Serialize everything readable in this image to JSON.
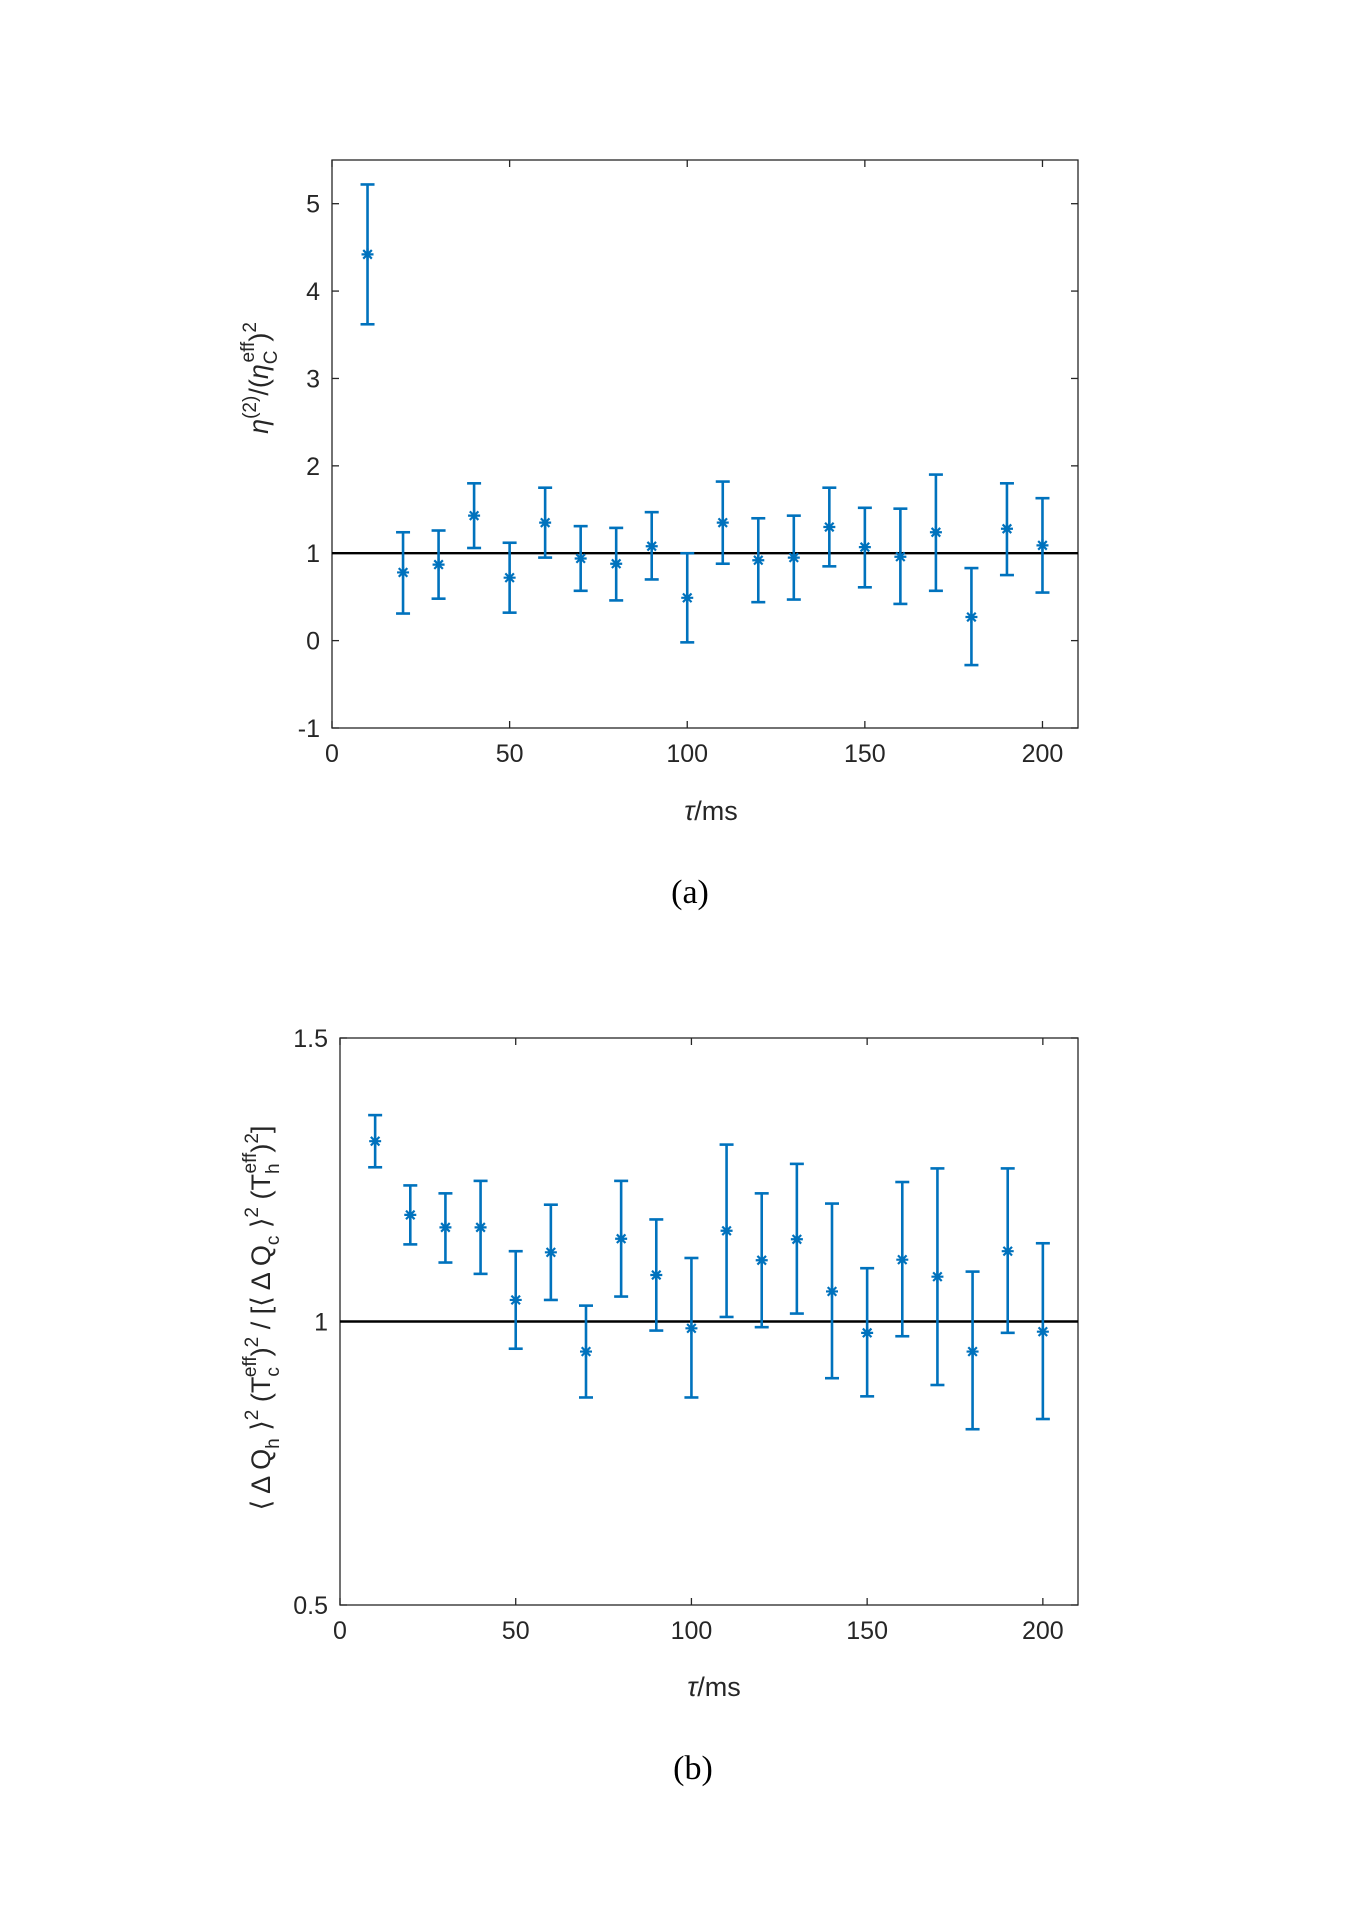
{
  "chart_data": [
    {
      "type": "scatter",
      "panel": "(a)",
      "caption": "(a)",
      "xlabel_symbol": "τ",
      "xlabel_unit": "/ms",
      "ylabel_parts": {
        "eta": "η",
        "sup2": "(2)",
        "mid": "/(",
        "eta2": "η",
        "sub": "C",
        "sup_eff": "eff",
        "close": ")",
        "sq": "2"
      },
      "xlim": [
        0,
        210
      ],
      "ylim": [
        -1,
        5.5
      ],
      "xticks": [
        0,
        50,
        100,
        150,
        200
      ],
      "yticks": [
        -1,
        0,
        1,
        2,
        3,
        4,
        5
      ],
      "reference_line": 1,
      "marker": "asterisk",
      "color": "#0072BD",
      "series": [
        {
          "x": [
            10,
            20,
            30,
            40,
            50,
            60,
            70,
            80,
            90,
            100,
            110,
            120,
            130,
            140,
            150,
            160,
            170,
            180,
            190,
            200
          ],
          "y": [
            4.42,
            0.78,
            0.87,
            1.43,
            0.72,
            1.35,
            0.94,
            0.88,
            1.08,
            0.49,
            1.35,
            0.92,
            0.95,
            1.3,
            1.07,
            0.96,
            1.24,
            0.27,
            1.28,
            1.09
          ],
          "err_low": [
            3.62,
            0.31,
            0.48,
            1.06,
            0.32,
            0.95,
            0.57,
            0.46,
            0.7,
            -0.02,
            0.88,
            0.44,
            0.47,
            0.85,
            0.61,
            0.42,
            0.57,
            -0.28,
            0.75,
            0.55
          ],
          "err_high": [
            5.22,
            1.24,
            1.26,
            1.8,
            1.12,
            1.75,
            1.31,
            1.29,
            1.47,
            1.0,
            1.82,
            1.4,
            1.43,
            1.75,
            1.52,
            1.51,
            1.9,
            0.83,
            1.8,
            1.63
          ]
        }
      ]
    },
    {
      "type": "scatter",
      "panel": "(b)",
      "caption": "(b)",
      "xlabel_symbol": "τ",
      "xlabel_unit": "/ms",
      "ylabel_parts": {
        "open1": "⟨ Δ Q",
        "sub_h": "h",
        "close1": " ⟩",
        "sq1": "2",
        "t1": " (T",
        "sub_c": "c",
        "eff1": "eff",
        "tc1": ")",
        "sq2": "2",
        "div": " / [⟨ Δ Q",
        "sub_c2": "c",
        "close2": " ⟩",
        "sq3": "2",
        "t2": " (T",
        "sub_h2": "h",
        "eff2": "eff",
        "tc2": ")",
        "sq4": "2",
        "end": "]"
      },
      "xlim": [
        0,
        210
      ],
      "ylim": [
        0.5,
        1.5
      ],
      "xticks": [
        0,
        50,
        100,
        150,
        200
      ],
      "yticks": [
        0.5,
        1,
        1.5
      ],
      "reference_line": 1,
      "marker": "asterisk",
      "color": "#0072BD",
      "series": [
        {
          "x": [
            10,
            20,
            30,
            40,
            50,
            60,
            70,
            80,
            90,
            100,
            110,
            120,
            130,
            140,
            150,
            160,
            170,
            180,
            190,
            200
          ],
          "y": [
            1.318,
            1.188,
            1.166,
            1.166,
            1.038,
            1.122,
            0.947,
            1.146,
            1.082,
            0.988,
            1.16,
            1.108,
            1.145,
            1.053,
            0.98,
            1.109,
            1.079,
            0.947,
            1.124,
            0.982
          ],
          "err_low": [
            1.272,
            1.136,
            1.104,
            1.084,
            0.952,
            1.038,
            0.866,
            1.044,
            0.984,
            0.866,
            1.008,
            0.99,
            1.014,
            0.9,
            0.868,
            0.974,
            0.888,
            0.81,
            0.98,
            0.828
          ],
          "err_high": [
            1.364,
            1.24,
            1.226,
            1.248,
            1.124,
            1.206,
            1.028,
            1.248,
            1.18,
            1.112,
            1.312,
            1.226,
            1.278,
            1.208,
            1.094,
            1.246,
            1.27,
            1.088,
            1.27,
            1.138
          ]
        }
      ]
    }
  ]
}
